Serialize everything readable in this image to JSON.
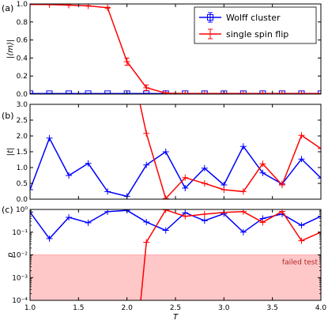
{
  "chart_data": [
    {
      "panel": "(a)",
      "type": "line",
      "ylabel": "|⟨m⟩|",
      "ylim": [
        0.0,
        1.0
      ],
      "yticks": [
        0.0,
        0.2,
        0.4,
        0.6,
        0.8,
        1.0
      ],
      "ytick_labels": [
        "0.0",
        "0.2",
        "0.4",
        "0.6",
        "0.8",
        "1.0"
      ],
      "legend": {
        "placement": "top-right"
      },
      "series": [
        {
          "name": "Wolff cluster",
          "color": "#0000ff",
          "marker": "square",
          "x": [
            1.0,
            1.2,
            1.4,
            1.6,
            1.8,
            2.0,
            2.2,
            2.4,
            2.6,
            2.8,
            3.0,
            3.2,
            3.4,
            3.6,
            3.8,
            4.0
          ],
          "y": [
            0.005,
            0.005,
            0.005,
            0.005,
            0.005,
            0.005,
            0.005,
            0.005,
            0.005,
            0.005,
            0.005,
            0.005,
            0.005,
            0.005,
            0.005,
            0.005
          ],
          "yerr": [
            0.004,
            0.004,
            0.004,
            0.004,
            0.004,
            0.004,
            0.004,
            0.004,
            0.004,
            0.004,
            0.004,
            0.004,
            0.004,
            0.004,
            0.004,
            0.004
          ]
        },
        {
          "name": "single spin flip",
          "color": "#ff0000",
          "marker": "plus",
          "x": [
            1.0,
            1.2,
            1.4,
            1.6,
            1.8,
            2.0,
            2.2,
            2.4,
            2.6,
            2.8,
            3.0,
            3.2,
            3.4,
            3.6,
            3.8,
            4.0
          ],
          "y": [
            0.995,
            0.993,
            0.987,
            0.979,
            0.958,
            0.36,
            0.07,
            0.01,
            0.005,
            0.005,
            0.005,
            0.005,
            0.005,
            0.005,
            0.005,
            0.005
          ],
          "yerr": [
            0.002,
            0.002,
            0.003,
            0.004,
            0.006,
            0.04,
            0.03,
            0.006,
            0.004,
            0.004,
            0.004,
            0.004,
            0.004,
            0.004,
            0.004,
            0.004
          ]
        }
      ]
    },
    {
      "panel": "(b)",
      "type": "line",
      "ylabel": "|t|",
      "ylim": [
        0.0,
        3.0
      ],
      "yticks": [
        0.0,
        0.5,
        1.0,
        1.5,
        2.0,
        2.5,
        3.0
      ],
      "ytick_labels": [
        "0.0",
        "0.5",
        "1.0",
        "1.5",
        "2.0",
        "2.5",
        "3.0"
      ],
      "series": [
        {
          "name": "Wolff cluster",
          "color": "#0000ff",
          "marker": "plus",
          "x": [
            1.0,
            1.2,
            1.4,
            1.6,
            1.8,
            2.0,
            2.2,
            2.4,
            2.6,
            2.8,
            3.0,
            3.2,
            3.4,
            3.6,
            3.8,
            4.0
          ],
          "y": [
            0.3,
            1.93,
            0.75,
            1.13,
            0.24,
            0.09,
            1.08,
            1.5,
            0.35,
            0.98,
            0.45,
            1.67,
            0.83,
            0.48,
            1.27,
            0.67
          ]
        },
        {
          "name": "single spin flip",
          "color": "#ff0000",
          "marker": "plus",
          "x": [
            2.1,
            2.2,
            2.4,
            2.6,
            2.8,
            3.0,
            3.2,
            3.4,
            3.6,
            3.8,
            4.0
          ],
          "y": [
            3.5,
            2.08,
            0.02,
            0.68,
            0.5,
            0.3,
            0.24,
            1.12,
            0.45,
            2.02,
            1.6
          ]
        }
      ]
    },
    {
      "panel": "(c)",
      "type": "line",
      "ylabel": "p",
      "xlabel": "T",
      "yscale": "log",
      "ylim": [
        0.0001,
        1.0
      ],
      "yticks": [
        0.0001,
        0.001,
        0.01,
        0.1,
        1.0
      ],
      "ytick_labels": [
        "10⁻⁴",
        "10⁻³",
        "10⁻²",
        "10⁻¹",
        "10⁰"
      ],
      "xlim": [
        1.0,
        4.0
      ],
      "xticks": [
        1.0,
        1.5,
        2.0,
        2.5,
        3.0,
        3.5,
        4.0
      ],
      "xtick_labels": [
        "1.0",
        "1.5",
        "2.0",
        "2.5",
        "3.0",
        "3.5",
        "4.0"
      ],
      "threshold": {
        "y": 0.01,
        "label": "failed test",
        "color": "#ffc8c8"
      },
      "series": [
        {
          "name": "Wolff cluster",
          "color": "#0000ff",
          "marker": "plus",
          "x": [
            1.0,
            1.2,
            1.4,
            1.6,
            1.8,
            2.0,
            2.2,
            2.4,
            2.6,
            2.8,
            3.0,
            3.2,
            3.4,
            3.6,
            3.8,
            4.0
          ],
          "y": [
            0.76,
            0.052,
            0.45,
            0.26,
            0.8,
            0.91,
            0.28,
            0.12,
            0.72,
            0.32,
            0.65,
            0.1,
            0.4,
            0.63,
            0.2,
            0.5
          ]
        },
        {
          "name": "single spin flip",
          "color": "#ff0000",
          "marker": "plus",
          "x": [
            2.14,
            2.2,
            2.4,
            2.6,
            2.8,
            3.0,
            3.2,
            3.4,
            3.6,
            3.8,
            4.0
          ],
          "y": [
            8e-05,
            0.036,
            0.95,
            0.5,
            0.62,
            0.74,
            0.8,
            0.27,
            0.82,
            0.042,
            0.1
          ]
        }
      ]
    }
  ]
}
